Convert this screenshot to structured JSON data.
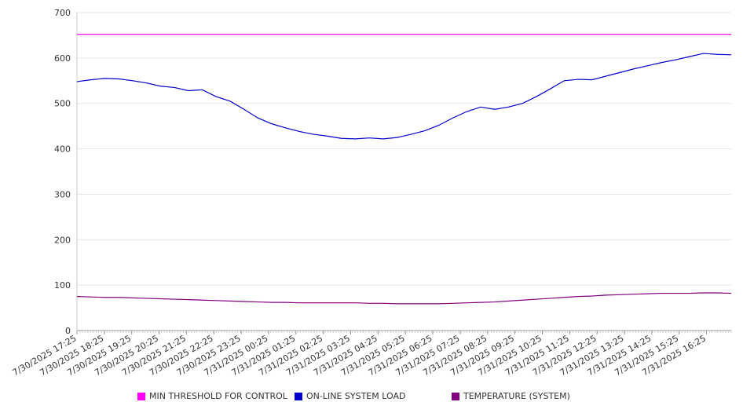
{
  "chart_data": {
    "type": "line",
    "title": "",
    "xlabel": "",
    "ylabel": "",
    "ylim": [
      0,
      700
    ],
    "yticks": [
      0,
      100,
      200,
      300,
      400,
      500,
      600,
      700
    ],
    "grid": true,
    "legend_position": "bottom",
    "x_tick_labels": [
      "7/30/2025 17:25",
      "7/30/2025 18:25",
      "7/30/2025 19:25",
      "7/30/2025 20:25",
      "7/30/2025 21:25",
      "7/30/2025 22:25",
      "7/30/2025 23:25",
      "7/31/2025 00:25",
      "7/31/2025 01:25",
      "7/31/2025 02:25",
      "7/31/2025 03:25",
      "7/31/2025 04:25",
      "7/31/2025 05:25",
      "7/31/2025 06:25",
      "7/31/2025 07:25",
      "7/31/2025 08:25",
      "7/31/2025 09:25",
      "7/31/2025 10:25",
      "7/31/2025 11:25",
      "7/31/2025 12:25",
      "7/31/2025 13:25",
      "7/31/2025 14:25",
      "7/31/2025 15:25",
      "7/31/2025 16:25"
    ],
    "x": [
      "7/30/2025 17:25",
      "7/30/2025 17:55",
      "7/30/2025 18:25",
      "7/30/2025 18:55",
      "7/30/2025 19:25",
      "7/30/2025 19:55",
      "7/30/2025 20:25",
      "7/30/2025 20:55",
      "7/30/2025 21:25",
      "7/30/2025 21:55",
      "7/30/2025 22:25",
      "7/30/2025 22:55",
      "7/30/2025 23:25",
      "7/30/2025 23:55",
      "7/31/2025 00:25",
      "7/31/2025 00:55",
      "7/31/2025 01:25",
      "7/31/2025 01:55",
      "7/31/2025 02:25",
      "7/31/2025 02:55",
      "7/31/2025 03:25",
      "7/31/2025 03:55",
      "7/31/2025 04:25",
      "7/31/2025 04:55",
      "7/31/2025 05:25",
      "7/31/2025 05:55",
      "7/31/2025 06:25",
      "7/31/2025 06:55",
      "7/31/2025 07:25",
      "7/31/2025 07:55",
      "7/31/2025 08:25",
      "7/31/2025 08:55",
      "7/31/2025 09:25",
      "7/31/2025 09:55",
      "7/31/2025 10:25",
      "7/31/2025 10:55",
      "7/31/2025 11:25",
      "7/31/2025 11:55",
      "7/31/2025 12:25",
      "7/31/2025 12:55",
      "7/31/2025 13:25",
      "7/31/2025 13:55",
      "7/31/2025 14:25",
      "7/31/2025 14:55",
      "7/31/2025 15:25",
      "7/31/2025 15:55",
      "7/31/2025 16:25",
      "7/31/2025 16:55"
    ],
    "series": [
      {
        "name": "MIN THRESHOLD FOR CONTROL",
        "color": "#ff00ff",
        "values": [
          652,
          652,
          652,
          652,
          652,
          652,
          652,
          652,
          652,
          652,
          652,
          652,
          652,
          652,
          652,
          652,
          652,
          652,
          652,
          652,
          652,
          652,
          652,
          652,
          652,
          652,
          652,
          652,
          652,
          652,
          652,
          652,
          652,
          652,
          652,
          652,
          652,
          652,
          652,
          652,
          652,
          652,
          652,
          652,
          652,
          652,
          652,
          652
        ]
      },
      {
        "name": "ON-LINE SYSTEM LOAD",
        "color": "#0000cc",
        "values": [
          548,
          552,
          555,
          554,
          550,
          545,
          538,
          535,
          528,
          530,
          515,
          505,
          487,
          468,
          455,
          446,
          438,
          432,
          428,
          423,
          422,
          424,
          422,
          425,
          432,
          440,
          452,
          468,
          482,
          492,
          487,
          492,
          500,
          515,
          532,
          550,
          553,
          552,
          560,
          568,
          576,
          583,
          590,
          596,
          603,
          610,
          608,
          607
        ]
      },
      {
        "name": "TEMPERATURE (SYSTEM)",
        "color": "#800080",
        "values": [
          75,
          74,
          73,
          73,
          72,
          71,
          70,
          69,
          68,
          67,
          66,
          65,
          64,
          63,
          62,
          62,
          61,
          61,
          61,
          61,
          61,
          60,
          60,
          59,
          59,
          59,
          59,
          60,
          61,
          62,
          63,
          65,
          67,
          69,
          71,
          73,
          75,
          76,
          78,
          79,
          80,
          81,
          82,
          82,
          82,
          83,
          83,
          82
        ]
      }
    ]
  }
}
